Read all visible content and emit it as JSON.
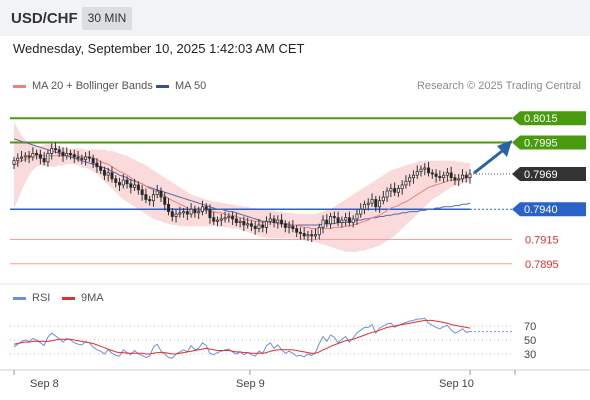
{
  "header": {
    "symbol": "USD/CHF",
    "timeframe": "30 MIN",
    "datetime": "Wednesday, September 10, 2025 1:42:03 AM CET",
    "copyright": "Research © 2025 Trading Central"
  },
  "legend": {
    "ma20_bb": "MA 20 + Bollinger Bands",
    "ma50": "MA 50",
    "rsi": "RSI",
    "ma9": "9MA"
  },
  "colors": {
    "bull_candle": "#ffffff",
    "bear_candle": "#222222",
    "ma20": "#f08080",
    "bollinger_fill": "#fadada",
    "ma50": "#5a6aa8",
    "resistance": "#4a9a10",
    "support": "#2a62c9",
    "target": "#f08080",
    "price": "#333333",
    "rsi": "#6e8fe0",
    "rsi_ma": "#e03030",
    "arrow": "#2a62a8"
  },
  "chart_data": [
    {
      "type": "line",
      "subtype": "candlestick",
      "title": "USD/CHF",
      "timeframe": "30 MIN",
      "x_ticks": [
        "Sep 8",
        "Sep 9",
        "Sep 10"
      ],
      "price_levels": [
        {
          "value": 0.8015,
          "label": "0.8015",
          "kind": "resistance",
          "color": "#4a9a10"
        },
        {
          "value": 0.7995,
          "label": "0.7995",
          "kind": "resistance",
          "color": "#4a9a10"
        },
        {
          "value": 0.7969,
          "label": "0.7969",
          "kind": "last_price",
          "color": "#333333"
        },
        {
          "value": 0.794,
          "label": "0.7940",
          "kind": "pivot",
          "color": "#2a62c9"
        },
        {
          "value": 0.7915,
          "label": "0.7915",
          "kind": "support_target",
          "color": "#e03030"
        },
        {
          "value": 0.7895,
          "label": "0.7895",
          "kind": "support_target",
          "color": "#e03030"
        }
      ],
      "close": [
        0.798,
        0.7982,
        0.7983,
        0.7984,
        0.7983,
        0.7986,
        0.7985,
        0.7982,
        0.7979,
        0.7986,
        0.799,
        0.7989,
        0.7987,
        0.7984,
        0.7986,
        0.7985,
        0.7983,
        0.7982,
        0.7981,
        0.7983,
        0.7982,
        0.7978,
        0.7975,
        0.7972,
        0.7968,
        0.797,
        0.7965,
        0.7962,
        0.796,
        0.7964,
        0.7961,
        0.7958,
        0.796,
        0.7956,
        0.7952,
        0.7948,
        0.7947,
        0.7952,
        0.7955,
        0.795,
        0.7944,
        0.7938,
        0.7934,
        0.7936,
        0.7937,
        0.7938,
        0.7936,
        0.794,
        0.7937,
        0.7938,
        0.7942,
        0.794,
        0.7933,
        0.793,
        0.7931,
        0.7932,
        0.7933,
        0.7934,
        0.7932,
        0.7929,
        0.793,
        0.7927,
        0.7928,
        0.7926,
        0.7924,
        0.7927,
        0.7925,
        0.793,
        0.7932,
        0.7929,
        0.7931,
        0.7928,
        0.7925,
        0.7926,
        0.7924,
        0.7921,
        0.792,
        0.7918,
        0.7919,
        0.7918,
        0.7919,
        0.7925,
        0.7931,
        0.7928,
        0.7934,
        0.7933,
        0.7929,
        0.7931,
        0.7933,
        0.7929,
        0.7932,
        0.7936,
        0.794,
        0.7944,
        0.7945,
        0.7948,
        0.7942,
        0.7947,
        0.795,
        0.7955,
        0.7957,
        0.7954,
        0.7957,
        0.796,
        0.7963,
        0.7966,
        0.7968,
        0.7971,
        0.7973,
        0.7974,
        0.797,
        0.7969,
        0.7967,
        0.7966,
        0.7968,
        0.797,
        0.7966,
        0.7964,
        0.7965,
        0.7968,
        0.7966,
        0.7969
      ],
      "ma20": [
        0.7976,
        0.7978,
        0.798,
        0.7981,
        0.7982,
        0.7984,
        0.7984,
        0.7984,
        0.7984,
        0.7984,
        0.7984,
        0.7984,
        0.7984,
        0.7984,
        0.7984,
        0.7984,
        0.7984,
        0.7984,
        0.7983,
        0.7983,
        0.7983,
        0.7982,
        0.7981,
        0.7979,
        0.7978,
        0.7977,
        0.7975,
        0.7973,
        0.7971,
        0.797,
        0.7968,
        0.7966,
        0.7964,
        0.7962,
        0.7961,
        0.7959,
        0.7957,
        0.7956,
        0.7954,
        0.7953,
        0.7951,
        0.7949,
        0.7947,
        0.7946,
        0.7944,
        0.7943,
        0.7941,
        0.794,
        0.794,
        0.7939,
        0.7939,
        0.7939,
        0.7938,
        0.7938,
        0.7937,
        0.7937,
        0.7936,
        0.7935,
        0.7935,
        0.7934,
        0.7933,
        0.7932,
        0.7931,
        0.7931,
        0.793,
        0.793,
        0.7929,
        0.7929,
        0.7929,
        0.7929,
        0.7928,
        0.7928,
        0.7928,
        0.7928,
        0.7927,
        0.7927,
        0.7926,
        0.7925,
        0.7925,
        0.7924,
        0.7924,
        0.7924,
        0.7924,
        0.7924,
        0.7924,
        0.7925,
        0.7925,
        0.7925,
        0.7926,
        0.7926,
        0.7927,
        0.7928,
        0.7929,
        0.793,
        0.7931,
        0.7933,
        0.7934,
        0.7935,
        0.7937,
        0.7939,
        0.7941,
        0.7942,
        0.7943,
        0.7945,
        0.7946,
        0.7948,
        0.795,
        0.7952,
        0.7954,
        0.7956,
        0.7958,
        0.7959,
        0.796,
        0.7961,
        0.7962,
        0.7963,
        0.7964,
        0.7964,
        0.7965,
        0.7965,
        0.7966,
        0.7966
      ],
      "ma50": [
        0.7998,
        0.7997,
        0.7996,
        0.7995,
        0.7994,
        0.7993,
        0.7992,
        0.7991,
        0.799,
        0.7989,
        0.7988,
        0.7987,
        0.7986,
        0.7985,
        0.7984,
        0.7983,
        0.7982,
        0.7981,
        0.798,
        0.7979,
        0.7978,
        0.7977,
        0.7976,
        0.7975,
        0.7974,
        0.7973,
        0.7971,
        0.797,
        0.7968,
        0.7967,
        0.7966,
        0.7964,
        0.7963,
        0.7962,
        0.7961,
        0.7959,
        0.7958,
        0.7957,
        0.7956,
        0.7955,
        0.7954,
        0.7953,
        0.7952,
        0.7951,
        0.795,
        0.7949,
        0.7948,
        0.7947,
        0.7946,
        0.7945,
        0.7944,
        0.7943,
        0.7942,
        0.7941,
        0.794,
        0.794,
        0.7939,
        0.7938,
        0.7938,
        0.7937,
        0.7936,
        0.7935,
        0.7934,
        0.7933,
        0.7932,
        0.7931,
        0.793,
        0.793,
        0.7929,
        0.7929,
        0.7928,
        0.7928,
        0.7928,
        0.7927,
        0.7927,
        0.7927,
        0.7927,
        0.7927,
        0.7927,
        0.7927,
        0.7927,
        0.7927,
        0.7928,
        0.7928,
        0.7928,
        0.7928,
        0.7929,
        0.7929,
        0.7929,
        0.793,
        0.793,
        0.7931,
        0.7931,
        0.7932,
        0.7932,
        0.7933,
        0.7933,
        0.7934,
        0.7934,
        0.7935,
        0.7935,
        0.7936,
        0.7936,
        0.7937,
        0.7937,
        0.7938,
        0.7938,
        0.7938,
        0.7939,
        0.7939,
        0.794,
        0.794,
        0.7941,
        0.7941,
        0.7942,
        0.7942,
        0.7942,
        0.7943,
        0.7943,
        0.7944,
        0.7944,
        0.7945
      ],
      "bb_upper": [
        0.8012,
        0.8006,
        0.8001,
        0.7997,
        0.7994,
        0.7993,
        0.7992,
        0.7992,
        0.7993,
        0.7994,
        0.7994,
        0.7993,
        0.7992,
        0.7991,
        0.799,
        0.799,
        0.799,
        0.799,
        0.799,
        0.7989,
        0.7989,
        0.7989,
        0.7989,
        0.7989,
        0.7989,
        0.7988,
        0.7988,
        0.7987,
        0.7986,
        0.7985,
        0.7984,
        0.7982,
        0.7981,
        0.7979,
        0.7978,
        0.7976,
        0.7974,
        0.7972,
        0.797,
        0.7968,
        0.7966,
        0.7964,
        0.7962,
        0.796,
        0.7958,
        0.7956,
        0.7954,
        0.7952,
        0.7951,
        0.795,
        0.7949,
        0.7948,
        0.7947,
        0.7946,
        0.7946,
        0.7945,
        0.7945,
        0.7944,
        0.7944,
        0.7943,
        0.7943,
        0.7942,
        0.7942,
        0.7941,
        0.7941,
        0.794,
        0.794,
        0.794,
        0.7939,
        0.7939,
        0.7938,
        0.7938,
        0.7937,
        0.7937,
        0.7937,
        0.7936,
        0.7936,
        0.7936,
        0.7936,
        0.7936,
        0.7936,
        0.7937,
        0.7938,
        0.7939,
        0.794,
        0.7942,
        0.7944,
        0.7946,
        0.7948,
        0.795,
        0.7952,
        0.7954,
        0.7956,
        0.7958,
        0.796,
        0.7962,
        0.7964,
        0.7966,
        0.7968,
        0.797,
        0.7972,
        0.7973,
        0.7974,
        0.7975,
        0.7976,
        0.7977,
        0.7978,
        0.7979,
        0.798,
        0.798,
        0.798,
        0.798,
        0.798,
        0.798,
        0.798,
        0.798,
        0.798,
        0.798,
        0.7979,
        0.7979,
        0.7978,
        0.7978
      ],
      "bb_lower": [
        0.794,
        0.7948,
        0.7955,
        0.7962,
        0.7968,
        0.7972,
        0.7975,
        0.7976,
        0.7976,
        0.7975,
        0.7975,
        0.7975,
        0.7976,
        0.7976,
        0.7977,
        0.7977,
        0.7977,
        0.7976,
        0.7975,
        0.7974,
        0.7973,
        0.7971,
        0.7969,
        0.7966,
        0.7963,
        0.796,
        0.7957,
        0.7954,
        0.7951,
        0.7948,
        0.7946,
        0.7944,
        0.7942,
        0.794,
        0.7938,
        0.7936,
        0.7934,
        0.7932,
        0.7931,
        0.793,
        0.7929,
        0.7928,
        0.7927,
        0.7927,
        0.7926,
        0.7926,
        0.7926,
        0.7926,
        0.7926,
        0.7926,
        0.7926,
        0.7926,
        0.7926,
        0.7926,
        0.7926,
        0.7926,
        0.7925,
        0.7925,
        0.7924,
        0.7924,
        0.7923,
        0.7922,
        0.7921,
        0.792,
        0.7919,
        0.7918,
        0.7917,
        0.7917,
        0.7916,
        0.7916,
        0.7916,
        0.7916,
        0.7916,
        0.7916,
        0.7916,
        0.7915,
        0.7915,
        0.7914,
        0.7914,
        0.7913,
        0.7913,
        0.7912,
        0.7911,
        0.791,
        0.7909,
        0.7908,
        0.7907,
        0.7906,
        0.7905,
        0.7905,
        0.7905,
        0.7905,
        0.7906,
        0.7906,
        0.7907,
        0.7908,
        0.7909,
        0.791,
        0.7912,
        0.7914,
        0.7916,
        0.7918,
        0.7921,
        0.7924,
        0.7927,
        0.793,
        0.7933,
        0.7936,
        0.7939,
        0.7942,
        0.7945,
        0.7948,
        0.795,
        0.7952,
        0.7954,
        0.7956,
        0.7958,
        0.7959,
        0.796,
        0.7961,
        0.7962,
        0.7963
      ]
    },
    {
      "type": "line",
      "title": "RSI",
      "series_names": [
        "RSI",
        "9MA"
      ],
      "y_ticks": [
        30,
        50,
        70
      ],
      "ylim": [
        10,
        90
      ],
      "rsi": [
        40,
        44,
        48,
        50,
        48,
        52,
        50,
        46,
        42,
        54,
        60,
        56,
        52,
        47,
        52,
        50,
        46,
        44,
        43,
        48,
        46,
        40,
        36,
        34,
        30,
        36,
        31,
        28,
        27,
        36,
        32,
        29,
        35,
        30,
        28,
        25,
        27,
        40,
        44,
        34,
        30,
        25,
        24,
        30,
        33,
        36,
        33,
        42,
        36,
        38,
        46,
        42,
        31,
        29,
        32,
        34,
        36,
        37,
        33,
        30,
        33,
        29,
        32,
        29,
        27,
        34,
        31,
        42,
        46,
        38,
        43,
        36,
        31,
        34,
        31,
        27,
        28,
        26,
        30,
        28,
        32,
        45,
        55,
        48,
        57,
        54,
        46,
        51,
        55,
        47,
        53,
        60,
        64,
        68,
        68,
        72,
        60,
        67,
        70,
        73,
        74,
        68,
        71,
        73,
        75,
        77,
        78,
        80,
        80,
        81,
        74,
        71,
        68,
        66,
        69,
        71,
        64,
        60,
        62,
        66,
        61,
        62
      ],
      "ma9": [
        44,
        45,
        46,
        47,
        47,
        48,
        48,
        48,
        48,
        48,
        49,
        50,
        51,
        51,
        51,
        51,
        50,
        49,
        48,
        47,
        46,
        45,
        43,
        41,
        39,
        37,
        35,
        33,
        32,
        32,
        31,
        31,
        31,
        31,
        31,
        30,
        30,
        31,
        32,
        32,
        32,
        31,
        30,
        30,
        31,
        32,
        33,
        34,
        35,
        36,
        37,
        38,
        37,
        36,
        35,
        35,
        35,
        35,
        34,
        33,
        33,
        32,
        32,
        31,
        31,
        31,
        31,
        32,
        34,
        35,
        36,
        36,
        36,
        36,
        36,
        35,
        34,
        33,
        32,
        31,
        31,
        33,
        36,
        38,
        41,
        43,
        45,
        47,
        49,
        50,
        51,
        53,
        55,
        57,
        59,
        61,
        62,
        64,
        66,
        68,
        69,
        70,
        71,
        72,
        73,
        74,
        75,
        76,
        77,
        78,
        78,
        78,
        77,
        76,
        75,
        74,
        72,
        71,
        70,
        69,
        68,
        67
      ]
    }
  ]
}
